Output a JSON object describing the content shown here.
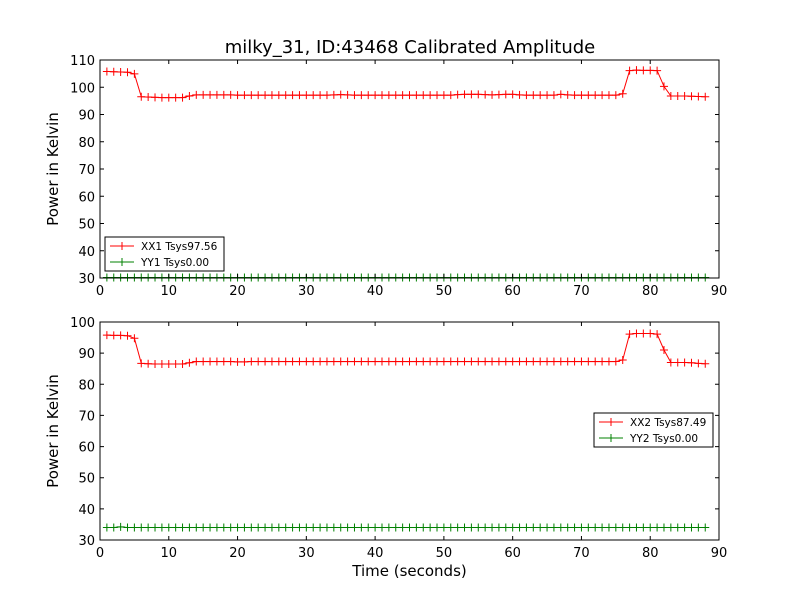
{
  "title": "milky_31, ID:43468 Calibrated Amplitude",
  "chart_data": [
    {
      "type": "line",
      "xlabel": "",
      "ylabel": "Power in Kelvin",
      "xlim": [
        0,
        90
      ],
      "ylim": [
        30,
        110
      ],
      "xticks": [
        0,
        10,
        20,
        30,
        40,
        50,
        60,
        70,
        80,
        90
      ],
      "yticks": [
        30,
        40,
        50,
        60,
        70,
        80,
        90,
        100,
        110
      ],
      "legend_position": "lower-left",
      "grid": false,
      "series": [
        {
          "name": "XX1 Tsys97.56",
          "color": "#ff0000",
          "marker": "+",
          "x": [
            1,
            2,
            3,
            4,
            5,
            6,
            7,
            8,
            9,
            10,
            11,
            12,
            13,
            14,
            15,
            16,
            17,
            18,
            19,
            20,
            21,
            22,
            23,
            24,
            25,
            26,
            27,
            28,
            29,
            30,
            31,
            32,
            33,
            34,
            35,
            36,
            37,
            38,
            39,
            40,
            41,
            42,
            43,
            44,
            45,
            46,
            47,
            48,
            49,
            50,
            51,
            52,
            53,
            54,
            55,
            56,
            57,
            58,
            59,
            60,
            61,
            62,
            63,
            64,
            65,
            66,
            67,
            68,
            69,
            70,
            71,
            72,
            73,
            74,
            75,
            76,
            77,
            78,
            79,
            80,
            81,
            82,
            83,
            84,
            85,
            86,
            87,
            88
          ],
          "y": [
            105.8,
            105.7,
            105.6,
            105.5,
            104.9,
            96.5,
            96.4,
            96.3,
            96.2,
            96.2,
            96.2,
            96.2,
            96.8,
            97.2,
            97.2,
            97.2,
            97.2,
            97.2,
            97.2,
            97.1,
            97.1,
            97.1,
            97.1,
            97.1,
            97.1,
            97.1,
            97.1,
            97.1,
            97.1,
            97.1,
            97.1,
            97.1,
            97.1,
            97.2,
            97.3,
            97.2,
            97.1,
            97.1,
            97.1,
            97.1,
            97.1,
            97.1,
            97.1,
            97.1,
            97.1,
            97.1,
            97.1,
            97.1,
            97.1,
            97.1,
            97.1,
            97.3,
            97.4,
            97.4,
            97.4,
            97.3,
            97.2,
            97.3,
            97.4,
            97.4,
            97.2,
            97.1,
            97.1,
            97.1,
            97.1,
            97.1,
            97.4,
            97.2,
            97.1,
            97.1,
            97.1,
            97.1,
            97.1,
            97.1,
            97.1,
            97.6,
            106.1,
            106.3,
            106.2,
            106.2,
            106.1,
            100.3,
            96.8,
            96.8,
            96.8,
            96.7,
            96.6,
            96.5
          ]
        },
        {
          "name": "YY1 Tsys0.00",
          "color": "#008000",
          "marker": "+",
          "x": [
            1,
            2,
            3,
            4,
            5,
            6,
            7,
            8,
            9,
            10,
            11,
            12,
            13,
            14,
            15,
            16,
            17,
            18,
            19,
            20,
            21,
            22,
            23,
            24,
            25,
            26,
            27,
            28,
            29,
            30,
            31,
            32,
            33,
            34,
            35,
            36,
            37,
            38,
            39,
            40,
            41,
            42,
            43,
            44,
            45,
            46,
            47,
            48,
            49,
            50,
            51,
            52,
            53,
            54,
            55,
            56,
            57,
            58,
            59,
            60,
            61,
            62,
            63,
            64,
            65,
            66,
            67,
            68,
            69,
            70,
            71,
            72,
            73,
            74,
            75,
            76,
            77,
            78,
            79,
            80,
            81,
            82,
            83,
            84,
            85,
            86,
            87,
            88
          ],
          "y": [
            30.2,
            30.2,
            30.2,
            30.2,
            30.2,
            30.2,
            30.2,
            30.2,
            30.2,
            30.2,
            30.2,
            30.2,
            30.2,
            30.2,
            30.2,
            30.2,
            30.2,
            30.2,
            30.2,
            30.2,
            30.2,
            30.2,
            30.2,
            30.2,
            30.2,
            30.2,
            30.2,
            30.2,
            30.2,
            30.2,
            30.2,
            30.2,
            30.2,
            30.2,
            30.2,
            30.2,
            30.2,
            30.2,
            30.2,
            30.2,
            30.2,
            30.2,
            30.2,
            30.2,
            30.2,
            30.2,
            30.2,
            30.2,
            30.2,
            30.2,
            30.2,
            30.2,
            30.2,
            30.2,
            30.2,
            30.2,
            30.2,
            30.2,
            30.2,
            30.2,
            30.2,
            30.2,
            30.2,
            30.2,
            30.2,
            30.2,
            30.2,
            30.2,
            30.2,
            30.2,
            30.2,
            30.2,
            30.2,
            30.2,
            30.2,
            30.2,
            30.2,
            30.2,
            30.2,
            30.2,
            30.2,
            30.2,
            30.2,
            30.2,
            30.2,
            30.2,
            30.2,
            30.2
          ]
        }
      ]
    },
    {
      "type": "line",
      "xlabel": "Time (seconds)",
      "ylabel": "Power in Kelvin",
      "xlim": [
        0,
        90
      ],
      "ylim": [
        30,
        100
      ],
      "xticks": [
        0,
        10,
        20,
        30,
        40,
        50,
        60,
        70,
        80,
        90
      ],
      "yticks": [
        30,
        40,
        50,
        60,
        70,
        80,
        90,
        100
      ],
      "legend_position": "center-right",
      "grid": false,
      "series": [
        {
          "name": "XX2 Tsys87.49",
          "color": "#ff0000",
          "marker": "+",
          "x": [
            1,
            2,
            3,
            4,
            5,
            6,
            7,
            8,
            9,
            10,
            11,
            12,
            13,
            14,
            15,
            16,
            17,
            18,
            19,
            20,
            21,
            22,
            23,
            24,
            25,
            26,
            27,
            28,
            29,
            30,
            31,
            32,
            33,
            34,
            35,
            36,
            37,
            38,
            39,
            40,
            41,
            42,
            43,
            44,
            45,
            46,
            47,
            48,
            49,
            50,
            51,
            52,
            53,
            54,
            55,
            56,
            57,
            58,
            59,
            60,
            61,
            62,
            63,
            64,
            65,
            66,
            67,
            68,
            69,
            70,
            71,
            72,
            73,
            74,
            75,
            76,
            77,
            78,
            79,
            80,
            81,
            82,
            83,
            84,
            85,
            86,
            87,
            88
          ],
          "y": [
            95.8,
            95.7,
            95.7,
            95.6,
            94.8,
            86.7,
            86.6,
            86.5,
            86.5,
            86.5,
            86.5,
            86.5,
            86.9,
            87.3,
            87.3,
            87.3,
            87.3,
            87.3,
            87.3,
            87.2,
            87.2,
            87.3,
            87.3,
            87.3,
            87.3,
            87.3,
            87.3,
            87.3,
            87.3,
            87.3,
            87.3,
            87.3,
            87.3,
            87.3,
            87.3,
            87.3,
            87.3,
            87.3,
            87.3,
            87.3,
            87.3,
            87.3,
            87.3,
            87.3,
            87.3,
            87.3,
            87.3,
            87.3,
            87.3,
            87.3,
            87.3,
            87.3,
            87.3,
            87.3,
            87.3,
            87.3,
            87.3,
            87.3,
            87.3,
            87.3,
            87.3,
            87.3,
            87.3,
            87.3,
            87.3,
            87.3,
            87.3,
            87.3,
            87.3,
            87.3,
            87.3,
            87.3,
            87.3,
            87.3,
            87.3,
            87.8,
            96.1,
            96.3,
            96.3,
            96.3,
            96.1,
            91.0,
            87.0,
            87.0,
            87.0,
            86.9,
            86.7,
            86.6
          ]
        },
        {
          "name": "YY2 Tsys0.00",
          "color": "#008000",
          "marker": "+",
          "x": [
            1,
            2,
            3,
            4,
            5,
            6,
            7,
            8,
            9,
            10,
            11,
            12,
            13,
            14,
            15,
            16,
            17,
            18,
            19,
            20,
            21,
            22,
            23,
            24,
            25,
            26,
            27,
            28,
            29,
            30,
            31,
            32,
            33,
            34,
            35,
            36,
            37,
            38,
            39,
            40,
            41,
            42,
            43,
            44,
            45,
            46,
            47,
            48,
            49,
            50,
            51,
            52,
            53,
            54,
            55,
            56,
            57,
            58,
            59,
            60,
            61,
            62,
            63,
            64,
            65,
            66,
            67,
            68,
            69,
            70,
            71,
            72,
            73,
            74,
            75,
            76,
            77,
            78,
            79,
            80,
            81,
            82,
            83,
            84,
            85,
            86,
            87,
            88
          ],
          "y": [
            34.0,
            34.0,
            34.2,
            34.0,
            34.0,
            34.0,
            34.0,
            34.0,
            34.0,
            34.0,
            34.0,
            34.0,
            34.0,
            34.0,
            34.0,
            34.0,
            34.0,
            34.0,
            34.0,
            34.0,
            34.0,
            34.0,
            34.0,
            34.0,
            34.0,
            34.0,
            34.0,
            34.0,
            34.0,
            34.0,
            34.0,
            34.0,
            34.0,
            34.0,
            34.0,
            34.0,
            34.0,
            34.0,
            34.0,
            34.0,
            34.0,
            34.0,
            34.0,
            34.0,
            34.0,
            34.0,
            34.0,
            34.0,
            34.0,
            34.0,
            34.0,
            34.0,
            34.0,
            34.0,
            34.0,
            34.0,
            34.0,
            34.0,
            34.0,
            34.0,
            34.0,
            34.0,
            34.0,
            34.0,
            34.0,
            34.0,
            34.0,
            34.0,
            34.0,
            34.0,
            34.0,
            34.0,
            34.0,
            34.0,
            34.0,
            34.0,
            34.0,
            34.0,
            34.0,
            34.0,
            34.0,
            34.0,
            34.0,
            34.0,
            34.0,
            34.0,
            34.0,
            34.0
          ]
        }
      ]
    }
  ]
}
